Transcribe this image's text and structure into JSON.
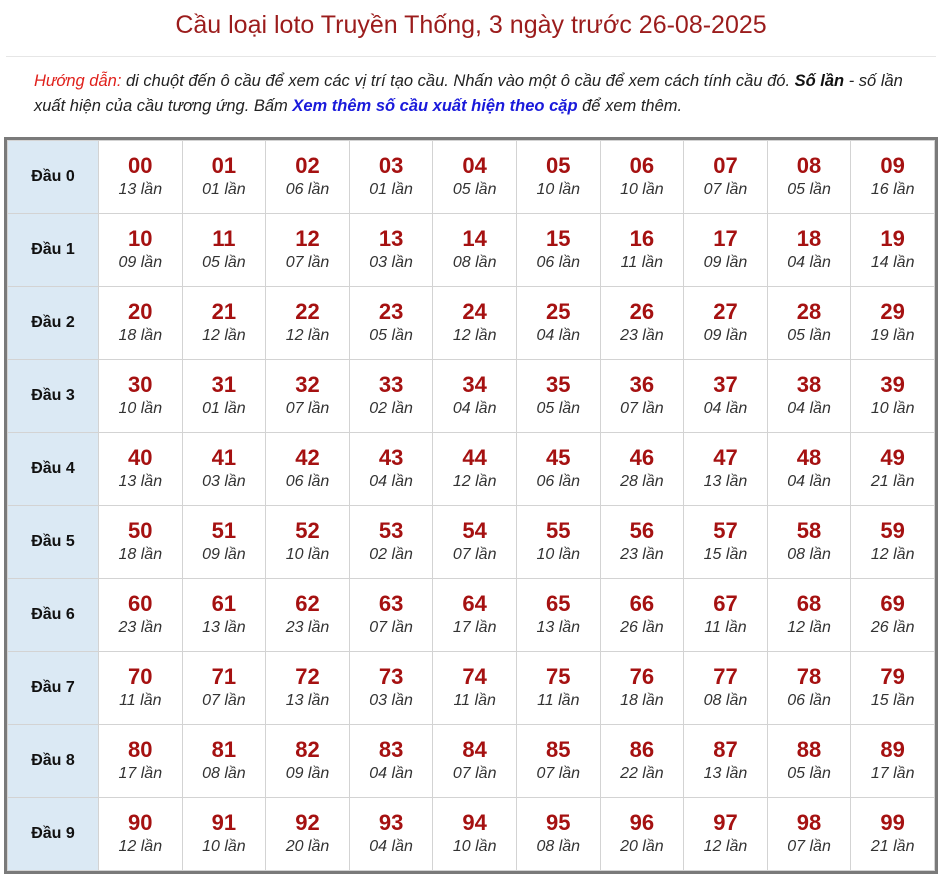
{
  "title": "Cầu loại loto Truyền Thống, 3 ngày trước 26-08-2025",
  "guide": {
    "lead": "Hướng dẫn:",
    "text1": " di chuột đến ô cầu để xem các vị trí tạo cầu. Nhấn vào một ô cầu để xem cách tính cầu đó. ",
    "bold": "Số lần",
    "text2": " - số lần xuất hiện của cầu tương ứng. Bấm ",
    "link": "Xem thêm số cầu xuất hiện theo cặp",
    "text3": " để xem thêm."
  },
  "count_suffix": " lần",
  "rows": [
    {
      "label": "Đầu 0",
      "cells": [
        [
          "00",
          "13"
        ],
        [
          "01",
          "01"
        ],
        [
          "02",
          "06"
        ],
        [
          "03",
          "01"
        ],
        [
          "04",
          "05"
        ],
        [
          "05",
          "10"
        ],
        [
          "06",
          "10"
        ],
        [
          "07",
          "07"
        ],
        [
          "08",
          "05"
        ],
        [
          "09",
          "16"
        ]
      ]
    },
    {
      "label": "Đầu 1",
      "cells": [
        [
          "10",
          "09"
        ],
        [
          "11",
          "05"
        ],
        [
          "12",
          "07"
        ],
        [
          "13",
          "03"
        ],
        [
          "14",
          "08"
        ],
        [
          "15",
          "06"
        ],
        [
          "16",
          "11"
        ],
        [
          "17",
          "09"
        ],
        [
          "18",
          "04"
        ],
        [
          "19",
          "14"
        ]
      ]
    },
    {
      "label": "Đầu 2",
      "cells": [
        [
          "20",
          "18"
        ],
        [
          "21",
          "12"
        ],
        [
          "22",
          "12"
        ],
        [
          "23",
          "05"
        ],
        [
          "24",
          "12"
        ],
        [
          "25",
          "04"
        ],
        [
          "26",
          "23"
        ],
        [
          "27",
          "09"
        ],
        [
          "28",
          "05"
        ],
        [
          "29",
          "19"
        ]
      ]
    },
    {
      "label": "Đầu 3",
      "cells": [
        [
          "30",
          "10"
        ],
        [
          "31",
          "01"
        ],
        [
          "32",
          "07"
        ],
        [
          "33",
          "02"
        ],
        [
          "34",
          "04"
        ],
        [
          "35",
          "05"
        ],
        [
          "36",
          "07"
        ],
        [
          "37",
          "04"
        ],
        [
          "38",
          "04"
        ],
        [
          "39",
          "10"
        ]
      ]
    },
    {
      "label": "Đầu 4",
      "cells": [
        [
          "40",
          "13"
        ],
        [
          "41",
          "03"
        ],
        [
          "42",
          "06"
        ],
        [
          "43",
          "04"
        ],
        [
          "44",
          "12"
        ],
        [
          "45",
          "06"
        ],
        [
          "46",
          "28"
        ],
        [
          "47",
          "13"
        ],
        [
          "48",
          "04"
        ],
        [
          "49",
          "21"
        ]
      ]
    },
    {
      "label": "Đầu 5",
      "cells": [
        [
          "50",
          "18"
        ],
        [
          "51",
          "09"
        ],
        [
          "52",
          "10"
        ],
        [
          "53",
          "02"
        ],
        [
          "54",
          "07"
        ],
        [
          "55",
          "10"
        ],
        [
          "56",
          "23"
        ],
        [
          "57",
          "15"
        ],
        [
          "58",
          "08"
        ],
        [
          "59",
          "12"
        ]
      ]
    },
    {
      "label": "Đầu 6",
      "cells": [
        [
          "60",
          "23"
        ],
        [
          "61",
          "13"
        ],
        [
          "62",
          "23"
        ],
        [
          "63",
          "07"
        ],
        [
          "64",
          "17"
        ],
        [
          "65",
          "13"
        ],
        [
          "66",
          "26"
        ],
        [
          "67",
          "11"
        ],
        [
          "68",
          "12"
        ],
        [
          "69",
          "26"
        ]
      ]
    },
    {
      "label": "Đầu 7",
      "cells": [
        [
          "70",
          "11"
        ],
        [
          "71",
          "07"
        ],
        [
          "72",
          "13"
        ],
        [
          "73",
          "03"
        ],
        [
          "74",
          "11"
        ],
        [
          "75",
          "11"
        ],
        [
          "76",
          "18"
        ],
        [
          "77",
          "08"
        ],
        [
          "78",
          "06"
        ],
        [
          "79",
          "15"
        ]
      ]
    },
    {
      "label": "Đầu 8",
      "cells": [
        [
          "80",
          "17"
        ],
        [
          "81",
          "08"
        ],
        [
          "82",
          "09"
        ],
        [
          "83",
          "04"
        ],
        [
          "84",
          "07"
        ],
        [
          "85",
          "07"
        ],
        [
          "86",
          "22"
        ],
        [
          "87",
          "13"
        ],
        [
          "88",
          "05"
        ],
        [
          "89",
          "17"
        ]
      ]
    },
    {
      "label": "Đầu 9",
      "cells": [
        [
          "90",
          "12"
        ],
        [
          "91",
          "10"
        ],
        [
          "92",
          "20"
        ],
        [
          "93",
          "04"
        ],
        [
          "94",
          "10"
        ],
        [
          "95",
          "08"
        ],
        [
          "96",
          "20"
        ],
        [
          "97",
          "12"
        ],
        [
          "98",
          "07"
        ],
        [
          "99",
          "21"
        ]
      ]
    }
  ],
  "colors": {
    "title": "#9b1c1c",
    "number": "#a51111",
    "header_bg": "#dbe9f4",
    "link": "#1a1adb",
    "lead": "#e0211c"
  }
}
